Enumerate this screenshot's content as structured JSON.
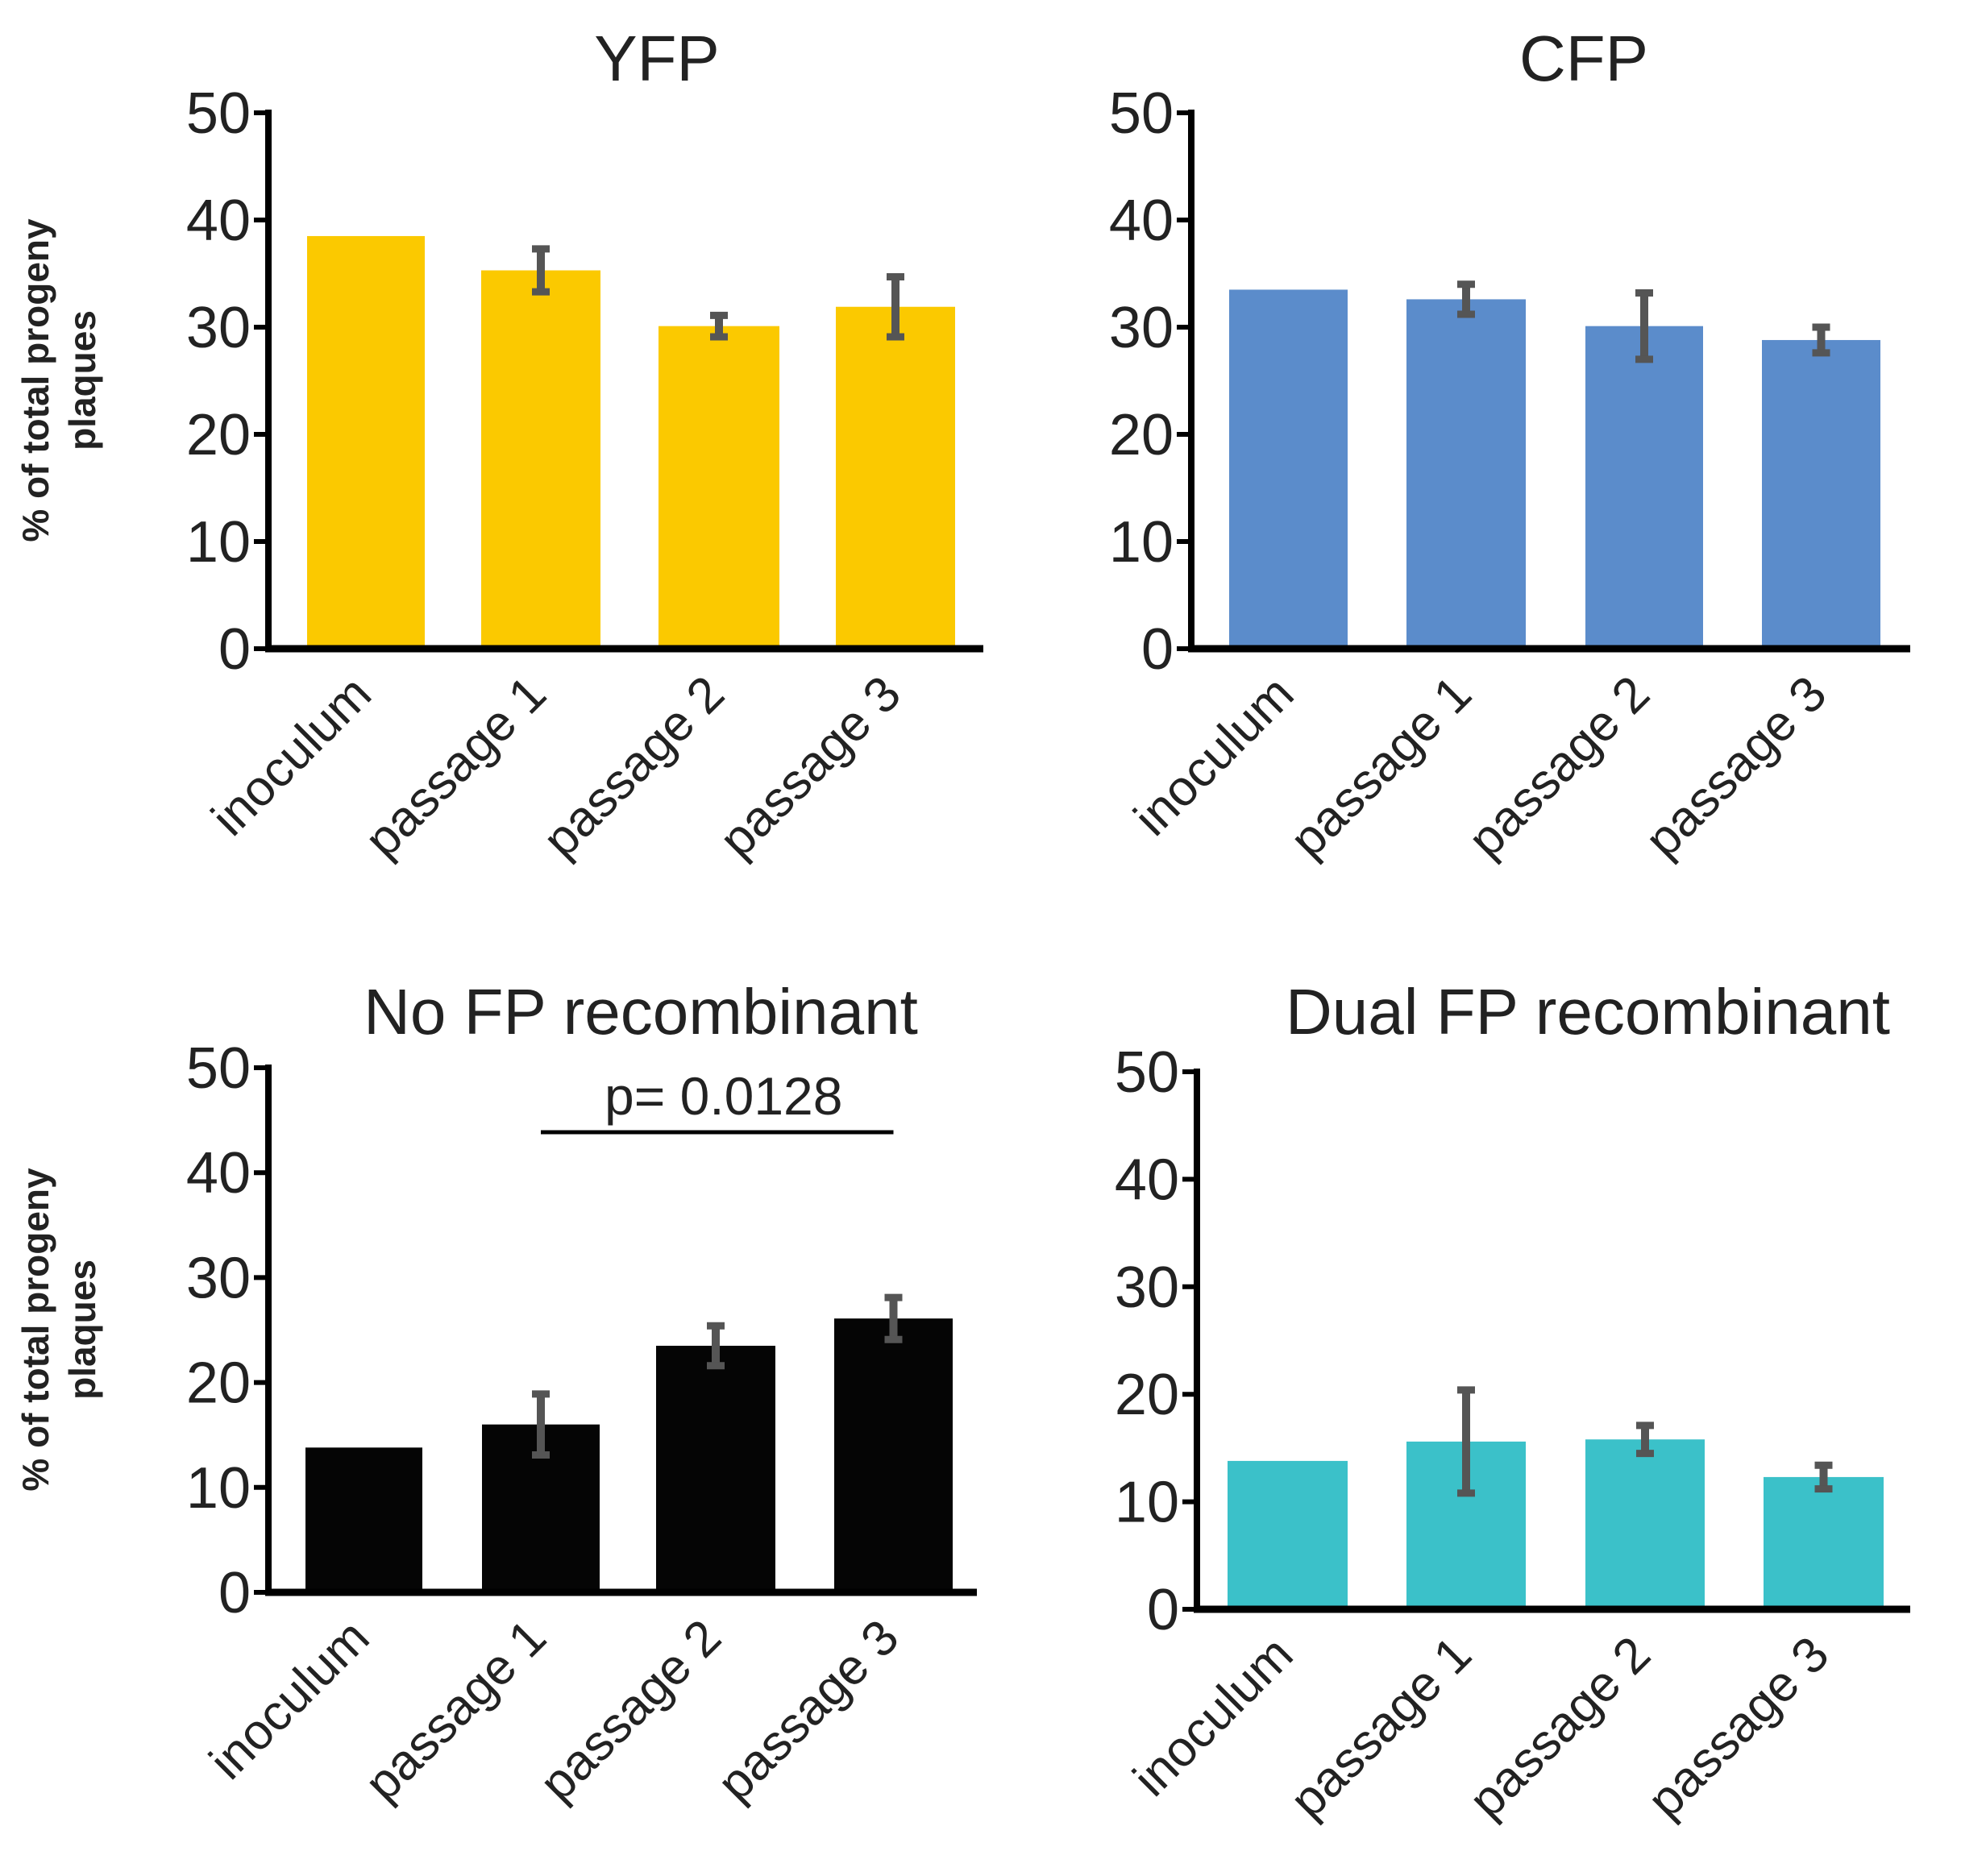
{
  "colors": {
    "yfp": "#fbc900",
    "cfp": "#5b8ccb",
    "nofp": "#050505",
    "dual": "#3bc1c9",
    "error_bar": "#555555",
    "axis": "#000000"
  },
  "chart_data": [
    {
      "type": "bar",
      "title": "YFP",
      "ylabel_lines": [
        "% of total progeny",
        "plaques"
      ],
      "categories": [
        "inoculum",
        "passage 1",
        "passage 2",
        "passage 3"
      ],
      "values": [
        38.5,
        35.3,
        30.1,
        31.9
      ],
      "errors": [
        null,
        2.0,
        1.0,
        2.8
      ],
      "ylim": [
        0,
        50
      ],
      "yticks": [
        "0",
        "10",
        "20",
        "30",
        "40",
        "50"
      ],
      "color": "yfp"
    },
    {
      "type": "bar",
      "title": "CFP",
      "ylabel_lines": [],
      "categories": [
        "inoculum",
        "passage 1",
        "passage 2",
        "passage 3"
      ],
      "values": [
        33.5,
        32.6,
        30.1,
        28.8
      ],
      "errors": [
        null,
        1.4,
        3.1,
        1.2
      ],
      "ylim": [
        0,
        50
      ],
      "yticks": [
        "0",
        "10",
        "20",
        "30",
        "40",
        "50"
      ],
      "color": "cfp"
    },
    {
      "type": "bar",
      "title": "No FP recombinant",
      "ylabel_lines": [
        "% of total progeny",
        "plaques"
      ],
      "categories": [
        "inoculum",
        "passage 1",
        "passage 2",
        "passage 3"
      ],
      "values": [
        13.8,
        16.0,
        23.5,
        26.1
      ],
      "errors": [
        null,
        2.9,
        1.9,
        2.0
      ],
      "ylim": [
        0,
        50
      ],
      "yticks": [
        "0",
        "10",
        "20",
        "30",
        "40",
        "50"
      ],
      "color": "nofp",
      "annotation": {
        "text": "p= 0.0128",
        "from": 1,
        "to": 3
      }
    },
    {
      "type": "bar",
      "title": "Dual FP recombinant",
      "ylabel_lines": [],
      "categories": [
        "inoculum",
        "passage 1",
        "passage 2",
        "passage 3"
      ],
      "values": [
        13.8,
        15.6,
        15.8,
        12.3
      ],
      "errors": [
        null,
        4.8,
        1.3,
        1.1
      ],
      "ylim": [
        0,
        50
      ],
      "yticks": [
        "0",
        "10",
        "20",
        "30",
        "40",
        "50"
      ],
      "color": "dual"
    }
  ]
}
